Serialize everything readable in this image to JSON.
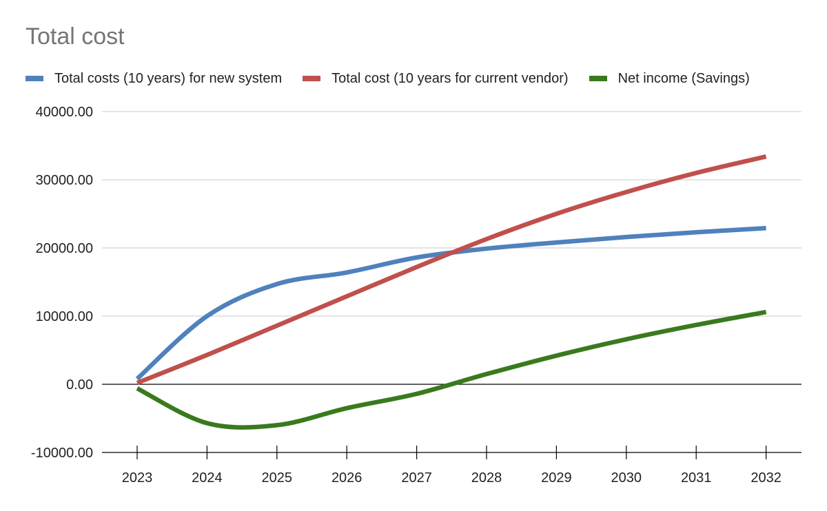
{
  "chart_data": {
    "type": "line",
    "title": "Total cost",
    "xlabel": "",
    "ylabel": "",
    "categories": [
      "2023",
      "2024",
      "2025",
      "2026",
      "2027",
      "2028",
      "2029",
      "2030",
      "2031",
      "2032"
    ],
    "ylim": [
      -10000,
      40000
    ],
    "yticks": [
      -10000,
      0,
      10000,
      20000,
      30000,
      40000
    ],
    "ytick_labels": [
      "-10000.00",
      "0.00",
      "10000.00",
      "20000.00",
      "30000.00",
      "40000.00"
    ],
    "grid": true,
    "legend": "top",
    "series": [
      {
        "name": "Total costs (10 years) for new system",
        "color": "#4f81bd",
        "values": [
          800,
          10000,
          14700,
          16400,
          18600,
          19900,
          20800,
          21600,
          22300,
          22900
        ]
      },
      {
        "name": "Total cost (10 years for current vendor)",
        "color": "#c0504d",
        "values": [
          200,
          4300,
          8600,
          12900,
          17200,
          21300,
          25000,
          28200,
          31000,
          33400
        ]
      },
      {
        "name": "Net income (Savings)",
        "color": "#3a7a1e",
        "values": [
          -600,
          -5700,
          -6000,
          -3500,
          -1400,
          1500,
          4200,
          6600,
          8700,
          10600
        ]
      }
    ]
  }
}
